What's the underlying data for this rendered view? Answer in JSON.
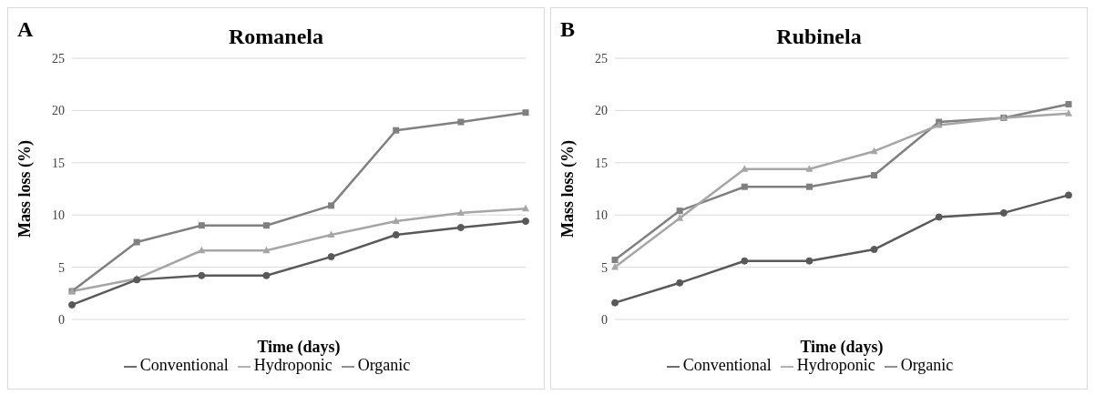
{
  "chart_data": [
    {
      "type": "line",
      "title": "Romanela",
      "annotations": [
        "A"
      ],
      "xlabel": "Time (days)",
      "ylabel": "Mass loss (%)",
      "categories": [
        null,
        null,
        null,
        null,
        null,
        null,
        null,
        null
      ],
      "ylim": [
        0,
        25
      ],
      "yticks": [
        0,
        5,
        10,
        15,
        20,
        25
      ],
      "grid": "y",
      "legend": "bottom",
      "tick_labels": "y",
      "line_style": "solid",
      "series": [
        {
          "name": "Conventional",
          "color": "#595959",
          "marker": "circle",
          "values": [
            1.4,
            3.8,
            4.2,
            4.2,
            6.0,
            8.1,
            8.8,
            9.4
          ]
        },
        {
          "name": "Hydroponic",
          "color": "#a6a6a6",
          "marker": "triangle",
          "values": [
            2.7,
            3.9,
            6.6,
            6.6,
            8.1,
            9.4,
            10.2,
            10.6
          ]
        },
        {
          "name": "Organic",
          "color": "#808080",
          "marker": "square",
          "values": [
            2.7,
            7.4,
            9.0,
            9.0,
            10.9,
            18.1,
            18.9,
            19.8
          ]
        }
      ]
    },
    {
      "type": "line",
      "title": "Rubinela",
      "annotations": [
        "B"
      ],
      "xlabel": "Time (days)",
      "ylabel": "Mass loss (%)",
      "categories": [
        null,
        null,
        null,
        null,
        null,
        null,
        null,
        null
      ],
      "ylim": [
        0,
        25
      ],
      "yticks": [
        0,
        5,
        10,
        15,
        20,
        25
      ],
      "grid": "y",
      "legend": "bottom",
      "tick_labels": "y",
      "line_style": "solid",
      "series": [
        {
          "name": "Conventional",
          "color": "#595959",
          "marker": "circle",
          "values": [
            1.6,
            3.5,
            5.6,
            5.6,
            6.7,
            9.8,
            10.2,
            11.9
          ]
        },
        {
          "name": "Hydroponic",
          "color": "#a6a6a6",
          "marker": "triangle",
          "values": [
            5.0,
            9.7,
            14.4,
            14.4,
            16.1,
            18.6,
            19.3,
            19.7
          ]
        },
        {
          "name": "Organic",
          "color": "#808080",
          "marker": "square",
          "values": [
            5.7,
            10.4,
            12.7,
            12.7,
            13.8,
            18.9,
            19.3,
            20.6
          ]
        }
      ]
    }
  ]
}
